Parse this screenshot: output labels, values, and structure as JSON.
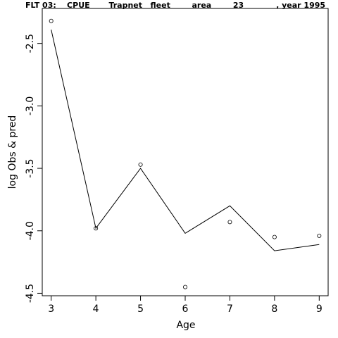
{
  "chart_data": {
    "type": "scatter",
    "title": "FLT 03:    CPUE       Trapnet   fleet        area        23            , year 1995",
    "xlabel": "Age",
    "ylabel": "log Obs & pred",
    "xlim": [
      2.8,
      9.2
    ],
    "ylim": [
      -4.52,
      -2.22
    ],
    "x_ticks": [
      3,
      4,
      5,
      6,
      7,
      8,
      9
    ],
    "x_tick_labels": [
      "3",
      "4",
      "5",
      "6",
      "7",
      "8",
      "9"
    ],
    "y_ticks": [
      -2.5,
      -3.0,
      -3.5,
      -4.0,
      -4.5
    ],
    "y_tick_labels": [
      "-2.5",
      "-3.0",
      "-3.5",
      "-4.0",
      "-4.5"
    ],
    "grid": false,
    "series": [
      {
        "name": "",
        "kind": "points",
        "x": [
          3,
          4,
          5,
          6,
          7,
          8,
          9
        ],
        "y": [
          -2.32,
          -3.98,
          -3.47,
          -4.45,
          -3.93,
          -4.05,
          -4.04
        ]
      },
      {
        "name": "",
        "kind": "line",
        "x": [
          3,
          4,
          5,
          6,
          7,
          8,
          9
        ],
        "y": [
          -2.39,
          -3.98,
          -3.5,
          -4.02,
          -3.8,
          -4.16,
          -4.11
        ]
      }
    ]
  }
}
